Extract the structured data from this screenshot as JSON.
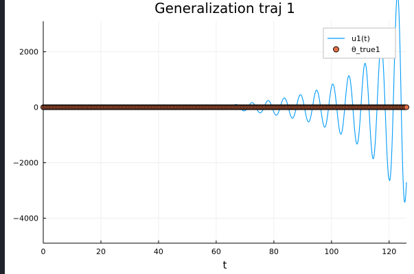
{
  "chart_data": {
    "type": "line",
    "title": "Generalization traj 1",
    "xlabel": "t",
    "ylabel": "",
    "xlim": [
      0,
      126
    ],
    "ylim": [
      -4900,
      3100
    ],
    "x_ticks": [
      0,
      20,
      40,
      60,
      80,
      100,
      120
    ],
    "y_ticks": [
      -4000,
      -2000,
      0,
      2000
    ],
    "grid": true,
    "legend_position": "top-right",
    "series": [
      {
        "name": "u1(t)",
        "type": "line",
        "color": "#009af9",
        "signal": {
          "flat_until_t": 57,
          "period": 5.6,
          "envelope_points": [
            [
              57,
              2
            ],
            [
              60,
              10
            ],
            [
              66,
              90
            ],
            [
              72,
              160
            ],
            [
              78,
              240
            ],
            [
              84,
              340
            ],
            [
              90,
              470
            ],
            [
              96,
              650
            ],
            [
              102,
              900
            ],
            [
              108,
              1250
            ],
            [
              114,
              1800
            ],
            [
              120,
              2600
            ],
            [
              124,
              4700
            ],
            [
              126,
              3000
            ]
          ]
        }
      },
      {
        "name": "θ_true1",
        "type": "scatter",
        "color": "#e26f46",
        "marker_edge_color": "#000000",
        "y": 0,
        "x_range": [
          0,
          126
        ],
        "x_step": 0.45
      }
    ]
  }
}
